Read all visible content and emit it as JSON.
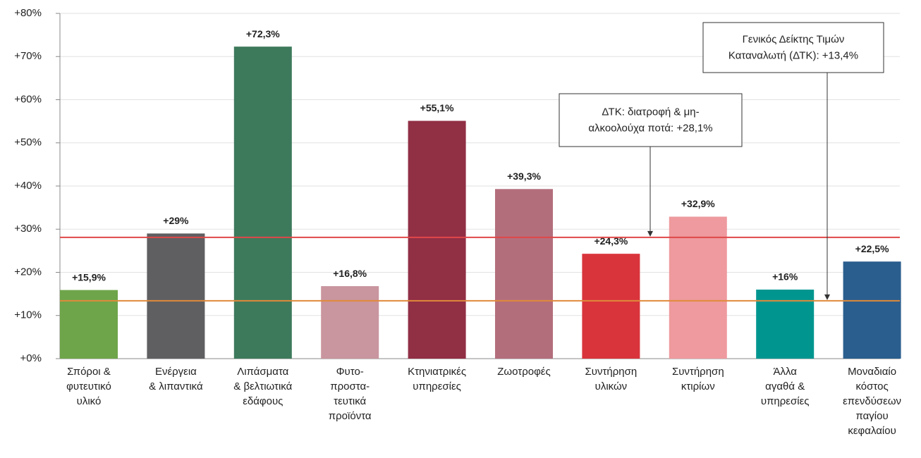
{
  "chart_data": {
    "type": "bar",
    "categories": [
      "Σπόροι &\nφυτευτικό\nυλικό",
      "Ενέργεια\n& λιπαντικά",
      "Λιπάσματα\n& βελτιωτικά\nεδάφους",
      "Φυτο-\nπροστα-\nτευτικά\nπροϊόντα",
      "Κτηνιατρικές\nυπηρεσίες",
      "Ζωοτροφές",
      "Συντήρηση\nυλικών",
      "Συντήρηση\nκτιρίων",
      "Άλλα\nαγαθά &\nυπηρεσίες",
      "Μοναδιαίο\nκόστος\nεπενδύσεων\nπαγίου\nκεφαλαίου"
    ],
    "values": [
      15.9,
      29,
      72.3,
      16.8,
      55.1,
      39.3,
      24.3,
      32.9,
      16,
      22.5
    ],
    "value_labels": [
      "+15,9%",
      "+29%",
      "+72,3%",
      "+16,8%",
      "+55,1%",
      "+39,3%",
      "+24,3%",
      "+32,9%",
      "+16%",
      "+22,5%"
    ],
    "colors": [
      "#6ea54a",
      "#5f5f62",
      "#3d7a5c",
      "#c9959e",
      "#912f45",
      "#b36e7c",
      "#d9343c",
      "#ee9a9e",
      "#00968f",
      "#2a5e8e"
    ],
    "ylim": [
      0,
      80
    ],
    "yticks": [
      {
        "value": 0,
        "label": "+0%"
      },
      {
        "value": 10,
        "label": "+10%"
      },
      {
        "value": 20,
        "label": "+20%"
      },
      {
        "value": 30,
        "label": "+30%"
      },
      {
        "value": 40,
        "label": "+40%"
      },
      {
        "value": 50,
        "label": "+50%"
      },
      {
        "value": 60,
        "label": "+60%"
      },
      {
        "value": 70,
        "label": "+70%"
      },
      {
        "value": 80,
        "label": "+80%"
      }
    ],
    "grid": true,
    "reference_lines": [
      {
        "value": 28.1,
        "color": "#e04848",
        "annotation": "ΔΤΚ: διατροφή & μη-\nαλκοολούχα ποτά: +28,1%"
      },
      {
        "value": 13.4,
        "color": "#e08a3a",
        "annotation": "Γενικός Δείκτης Τιμών\nΚαταναλωτή (ΔΤΚ): +13,4%"
      }
    ]
  }
}
